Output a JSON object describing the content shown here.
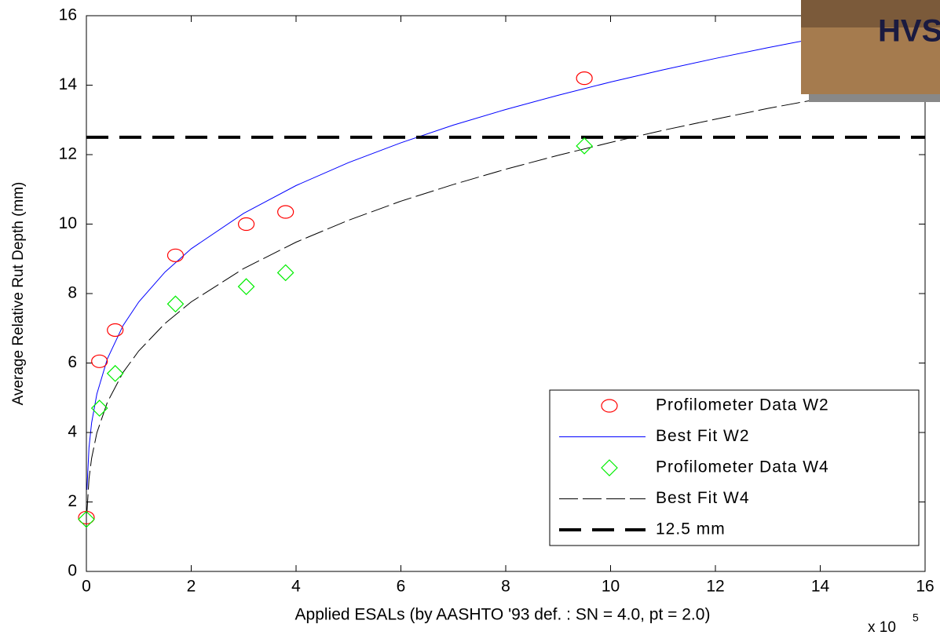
{
  "chart_data": {
    "type": "line",
    "xlabel": "Applied ESALs (by AASHTO '93 def. : SN = 4.0, pt = 2.0)",
    "ylabel": "Average Relative Rut Depth (mm)",
    "x_multiplier": "x 10",
    "x_multiplier_exponent": "5",
    "image_label": "HVS",
    "xlim": [
      0,
      16
    ],
    "ylim": [
      0,
      16
    ],
    "xticks": [
      0,
      2,
      4,
      6,
      8,
      10,
      12,
      14,
      16
    ],
    "yticks": [
      0,
      2,
      4,
      6,
      8,
      10,
      12,
      14,
      16
    ],
    "legend_position": "lower right",
    "series": [
      {
        "name": "Profilometer Data W2",
        "kind": "marker",
        "marker": "circle",
        "color": "#ff0000",
        "x": [
          0.0,
          0.25,
          0.55,
          1.7,
          3.05,
          3.8,
          9.5
        ],
        "values": [
          1.55,
          6.05,
          6.95,
          9.1,
          10.0,
          10.35,
          14.2
        ]
      },
      {
        "name": "Best Fit W2",
        "kind": "line",
        "dash": "solid",
        "color": "#0000ff",
        "x": [
          0.01,
          0.05,
          0.1,
          0.2,
          0.4,
          0.7,
          1,
          1.5,
          2,
          3,
          4,
          5,
          6,
          7,
          8,
          9,
          10,
          11,
          12,
          13,
          14,
          15,
          16
        ],
        "values": [
          2.35,
          3.57,
          4.28,
          5.11,
          6.12,
          7.08,
          7.76,
          8.62,
          9.29,
          10.31,
          11.11,
          11.77,
          12.34,
          12.85,
          13.3,
          13.71,
          14.09,
          14.44,
          14.77,
          15.08,
          15.37,
          15.65,
          15.91
        ]
      },
      {
        "name": "Profilometer Data W4",
        "kind": "marker",
        "marker": "diamond",
        "color": "#00ee00",
        "x": [
          0.0,
          0.25,
          0.55,
          1.7,
          3.05,
          3.8,
          9.5
        ],
        "values": [
          1.5,
          4.7,
          5.7,
          7.7,
          8.2,
          8.6,
          12.25
        ]
      },
      {
        "name": "Best Fit W4",
        "kind": "line",
        "dash": "long-dash",
        "color": "#000000",
        "x": [
          0.01,
          0.05,
          0.1,
          0.2,
          0.4,
          0.7,
          1,
          1.5,
          2,
          3,
          4,
          5,
          6,
          7,
          8,
          9,
          10,
          11,
          12,
          13,
          14,
          15,
          16
        ],
        "values": [
          1.68,
          2.67,
          3.26,
          3.99,
          4.87,
          5.73,
          6.35,
          7.14,
          7.76,
          8.72,
          9.48,
          10.11,
          10.66,
          11.14,
          11.58,
          11.98,
          12.35,
          12.7,
          13.02,
          13.33,
          13.61,
          13.89,
          14.15
        ]
      },
      {
        "name": "12.5 mm",
        "kind": "hline",
        "dash": "thick-dash",
        "color": "#000000",
        "values": [
          12.5
        ]
      }
    ]
  }
}
